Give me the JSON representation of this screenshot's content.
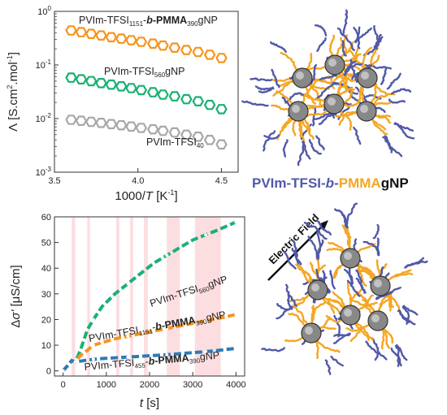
{
  "chart_data": [
    {
      "type": "scatter",
      "log_y": true,
      "xlim": [
        3.5,
        4.6
      ],
      "ylim": [
        0.001,
        1
      ],
      "xticks": [
        "3.5",
        "4.0",
        "4.5"
      ],
      "yticks": [
        "10^-3",
        "10^-2",
        "10^-1",
        "10^0"
      ],
      "xlabel": "1000/T [K-1]",
      "ylabel": "Λ [S.cm2.mol-1]",
      "series": [
        {
          "name": "PVIm-TFSI1151-b-PMMA390gNP",
          "color": "#f7941d",
          "x": [
            3.6,
            3.66,
            3.72,
            3.78,
            3.84,
            3.9,
            3.96,
            4.02,
            4.09,
            4.15,
            4.22,
            4.29,
            4.36,
            4.43,
            4.5
          ],
          "y": [
            0.44,
            0.41,
            0.38,
            0.355,
            0.33,
            0.31,
            0.29,
            0.27,
            0.25,
            0.23,
            0.21,
            0.19,
            0.175,
            0.155,
            0.135
          ]
        },
        {
          "name": "PVIm-TFSI560gNP",
          "color": "#1ab174",
          "x": [
            3.6,
            3.66,
            3.72,
            3.78,
            3.84,
            3.9,
            3.96,
            4.02,
            4.09,
            4.15,
            4.22,
            4.29,
            4.36,
            4.43,
            4.5
          ],
          "y": [
            0.058,
            0.054,
            0.05,
            0.046,
            0.043,
            0.04,
            0.037,
            0.034,
            0.031,
            0.028,
            0.026,
            0.023,
            0.021,
            0.018,
            0.015
          ]
        },
        {
          "name": "PVIm-TFSI40",
          "color": "#a8a8a8",
          "x": [
            3.6,
            3.66,
            3.72,
            3.78,
            3.84,
            3.9,
            3.96,
            4.02,
            4.09,
            4.15,
            4.22,
            4.29,
            4.36,
            4.43,
            4.5
          ],
          "y": [
            0.0095,
            0.0091,
            0.0087,
            0.0083,
            0.0079,
            0.0075,
            0.0071,
            0.0067,
            0.0063,
            0.0059,
            0.0055,
            0.005,
            0.0046,
            0.004,
            0.0033
          ]
        }
      ],
      "annotations": {
        "orange_main": "PVIm-TFSI",
        "orange_sub": "1151",
        "orange_sep": "-",
        "orange_b": "b",
        "orange_tail": "-PMMA",
        "orange_sub2": "390",
        "orange_end": "gNP",
        "green_main": "PVIm-TFSI",
        "green_sub": "560",
        "green_end": "gNP",
        "gray_main": "PVIm-TFSI",
        "gray_sub": "40"
      },
      "ylabel_parts": {
        "lambda": "Λ",
        "pre": "[S.cm",
        "sup1": "2",
        "mid": ".mol",
        "sup2": "-1",
        "post": "]"
      },
      "xlabel_parts": {
        "pre": "1000/",
        "T": "T",
        "mid": " [K",
        "sup": "-1",
        "post": "]"
      }
    },
    {
      "type": "line",
      "xlim": [
        -200,
        4200
      ],
      "ylim": [
        -2,
        60
      ],
      "xticks": [
        0,
        1000,
        2000,
        3000,
        4000
      ],
      "yticks": [
        0,
        10,
        20,
        30,
        40,
        50,
        60
      ],
      "xlabel": "t [s]",
      "ylabel": "Δσ' [μS/cm]",
      "shaded_intervals": [
        [
          200,
          280
        ],
        [
          560,
          620
        ],
        [
          1230,
          1300
        ],
        [
          1550,
          1620
        ],
        [
          1870,
          1960
        ],
        [
          2400,
          2700
        ],
        [
          3050,
          3650
        ]
      ],
      "series": [
        {
          "name": "PVIm-TFSI560gNP",
          "color": "#1ab174",
          "x": [
            0,
            100,
            200,
            280,
            400,
            560,
            700,
            900,
            1200,
            1500,
            1800,
            2100,
            2400,
            2700,
            3000,
            3300,
            3600,
            3800,
            4000
          ],
          "y": [
            0,
            2,
            4,
            3.5,
            8,
            16,
            20,
            25,
            30,
            34,
            38,
            42,
            45,
            48,
            51,
            53,
            55,
            56.5,
            58
          ]
        },
        {
          "name": "PVIm-TFSI1151-b-PMMA390gNP",
          "color": "#f7941d",
          "x": [
            0,
            100,
            200,
            280,
            400,
            560,
            700,
            900,
            1200,
            1500,
            1800,
            2100,
            2400,
            2700,
            3000,
            3300,
            3600,
            3800,
            4000
          ],
          "y": [
            0,
            2,
            4,
            3.5,
            6,
            8,
            10,
            11,
            12.5,
            13.5,
            14.5,
            15.5,
            16.5,
            17.5,
            18.5,
            19.5,
            20.5,
            21.2,
            22
          ]
        },
        {
          "name": "PVIm-TFSI455-b-PMMA390gNP",
          "color": "#2d7bb5",
          "x": [
            0,
            100,
            200,
            280,
            400,
            560,
            700,
            900,
            1200,
            1500,
            1800,
            2100,
            2400,
            2700,
            3000,
            3300,
            3600,
            3800,
            4000
          ],
          "y": [
            0,
            2,
            4,
            3.5,
            3.8,
            4.2,
            4.5,
            4.8,
            5.1,
            5.4,
            5.7,
            6.0,
            6.3,
            6.7,
            7.1,
            7.5,
            8.0,
            8.4,
            8.8
          ]
        }
      ],
      "annotations": {
        "green_main": "PVIm-TFSI",
        "green_sub": "560",
        "green_end": "gNP",
        "orange_main": "PVIm-TFSI",
        "orange_sub": "1151",
        "orange_sep": "-",
        "orange_b": "b",
        "orange_tail": "-PMMA",
        "orange_sub2": "390",
        "orange_end": "gNP",
        "blue_main": "PVIm-TFSI",
        "blue_sub": "455",
        "blue_sep": "-",
        "blue_b": "b",
        "blue_tail": "-PMMA",
        "blue_sub2": "390",
        "blue_end": "gNP"
      },
      "ylabel_parts": {
        "delta": "Δ",
        "sigma": "σ'",
        "unit": " [μS/cm]"
      },
      "xlabel_parts": {
        "t": "t",
        "unit": " [s]"
      }
    }
  ],
  "schematic": {
    "title_a": "PVIm-TFSI-",
    "title_b": "b",
    "title_c": "-",
    "title_d": "PMMA",
    "title_e": "gNP",
    "arrow_label": "Electric Field",
    "colors": {
      "blue": "#5159a8",
      "orange": "#f5a623",
      "particle": "#888888"
    }
  }
}
